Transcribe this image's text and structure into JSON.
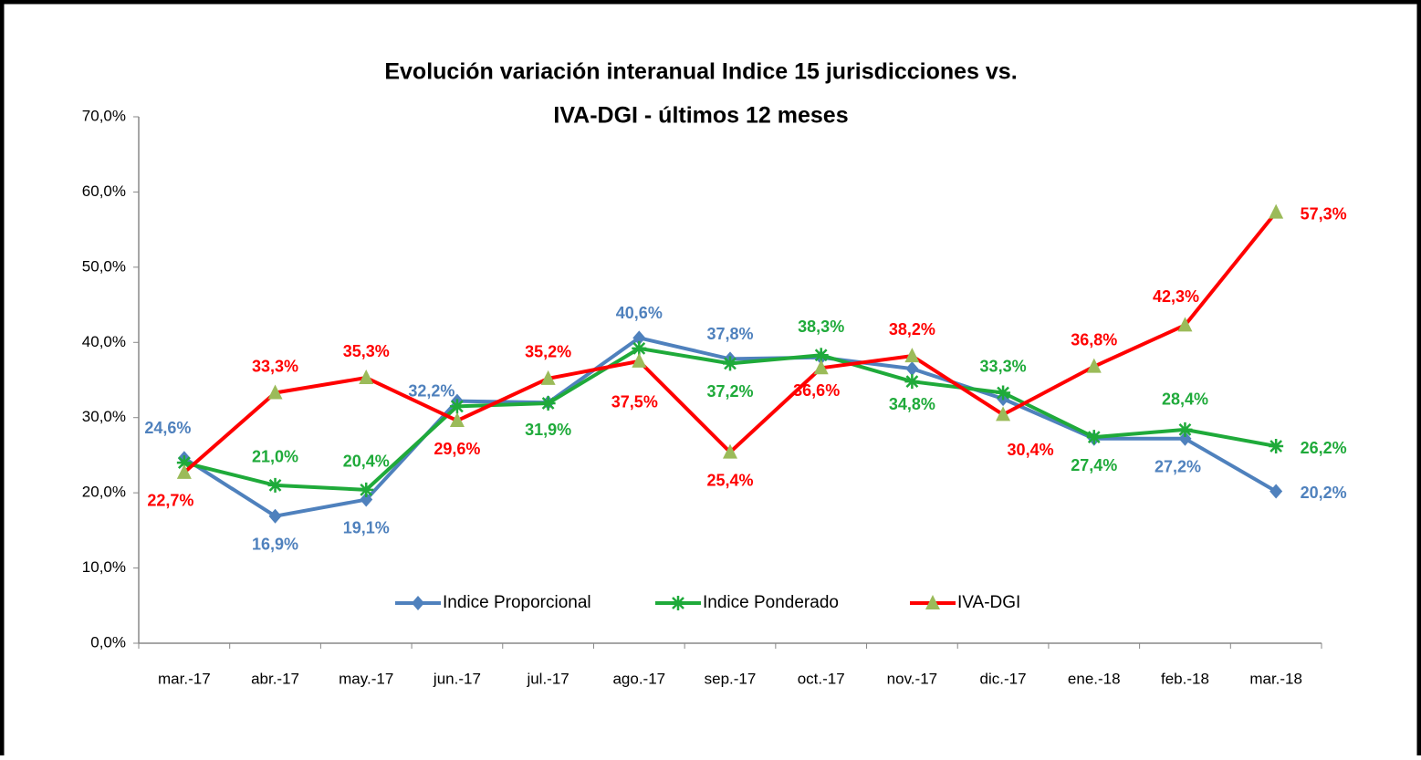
{
  "chart_data": {
    "type": "line",
    "title": "Evolución variación interanual Indice 15 jurisdicciones vs.",
    "subtitle": "IVA-DGI - últimos 12 meses",
    "categories": [
      "mar.-17",
      "abr.-17",
      "may.-17",
      "jun.-17",
      "jul.-17",
      "ago.-17",
      "sep.-17",
      "oct.-17",
      "nov.-17",
      "dic.-17",
      "ene.-18",
      "feb.-18",
      "mar.-18"
    ],
    "series": [
      {
        "name": "Indice Proporcional",
        "color": "#4f81bd",
        "marker": "diamond",
        "values": [
          24.6,
          16.9,
          19.1,
          32.2,
          32.0,
          40.6,
          37.8,
          38.0,
          36.5,
          32.5,
          27.2,
          27.2,
          20.2
        ],
        "value_labels": [
          "24,6%",
          "16,9%",
          "19,1%",
          "32,2%",
          null,
          "40,6%",
          "37,8%",
          null,
          null,
          null,
          null,
          "27,2%",
          "20,2%"
        ]
      },
      {
        "name": "Indice Ponderado",
        "color": "#1faa3a",
        "marker": "star",
        "values": [
          24.0,
          21.0,
          20.4,
          31.5,
          31.9,
          39.2,
          37.2,
          38.3,
          34.8,
          33.3,
          27.4,
          28.4,
          26.2
        ],
        "value_labels": [
          null,
          "21,0%",
          "20,4%",
          null,
          "31,9%",
          null,
          "37,2%",
          "38,3%",
          "34,8%",
          "33,3%",
          "27,4%",
          "28,4%",
          "26,2%"
        ]
      },
      {
        "name": "IVA-DGI",
        "color": "#ff0000",
        "marker": "triangle",
        "marker_color": "#9bbb59",
        "values": [
          22.7,
          33.3,
          35.3,
          29.6,
          35.2,
          37.5,
          25.4,
          36.6,
          38.2,
          30.4,
          36.8,
          42.3,
          57.3
        ],
        "value_labels": [
          "22,7%",
          "33,3%",
          "35,3%",
          "29,6%",
          "35,2%",
          "37,5%",
          "25,4%",
          "36,6%",
          "38,2%",
          "30,4%",
          "36,8%",
          "42,3%",
          "57,3%"
        ]
      }
    ],
    "ylim": [
      0,
      70
    ],
    "yticks": [
      {
        "value": 0,
        "label": "0,0%"
      },
      {
        "value": 10,
        "label": "10,0%"
      },
      {
        "value": 20,
        "label": "20,0%"
      },
      {
        "value": 30,
        "label": "30,0%"
      },
      {
        "value": 40,
        "label": "40,0%"
      },
      {
        "value": 50,
        "label": "50,0%"
      },
      {
        "value": 60,
        "label": "60,0%"
      },
      {
        "value": 70,
        "label": "70,0%"
      }
    ],
    "grid": false,
    "legend": "bottom"
  }
}
